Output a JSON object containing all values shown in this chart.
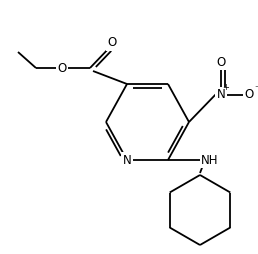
{
  "bg_color": "#ffffff",
  "line_color": "#000000",
  "lw": 1.3,
  "figsize": [
    2.58,
    2.54
  ],
  "dpi": 100,
  "xlim": [
    0,
    258
  ],
  "ylim": [
    0,
    254
  ]
}
